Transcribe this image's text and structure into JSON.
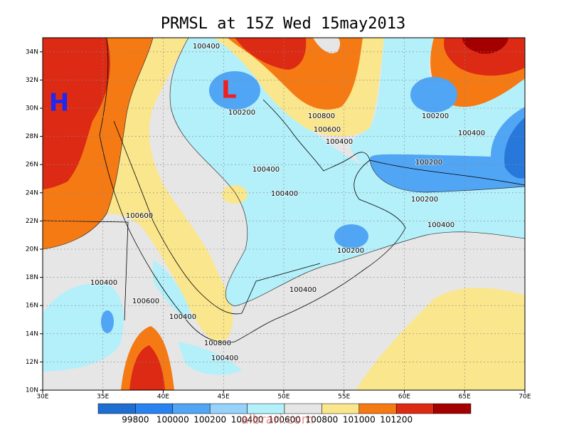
{
  "title": "PRMSL at 15Z Wed 15may2013",
  "lat_labels": [
    "10N",
    "12N",
    "14N",
    "16N",
    "18N",
    "20N",
    "22N",
    "24N",
    "26N",
    "28N",
    "30N",
    "32N",
    "34N"
  ],
  "lon_labels": [
    "30E",
    "35E",
    "40E",
    "45E",
    "50E",
    "55E",
    "60E",
    "65E",
    "70E"
  ],
  "markers": {
    "high": "H",
    "low": "L"
  },
  "contour_labels": [
    "100400",
    "100200",
    "100800",
    "100600",
    "100400",
    "100200",
    "100400",
    "100200",
    "100400",
    "100400",
    "100200",
    "100600",
    "100400",
    "100200",
    "100400",
    "100400",
    "100600",
    "100400",
    "100800",
    "100400"
  ],
  "colorbar": {
    "colors": [
      "#1e6ed2",
      "#2882f0",
      "#50a5f5",
      "#96d2fa",
      "#b4f0fa",
      "#e6e6e6",
      "#fae68c",
      "#f57a14",
      "#dc2a14",
      "#a50000"
    ],
    "labels": [
      "99800",
      "100000",
      "100200",
      "100400",
      "100600",
      "100800",
      "101000",
      "101200"
    ]
  },
  "watermark": "albrari.com"
}
